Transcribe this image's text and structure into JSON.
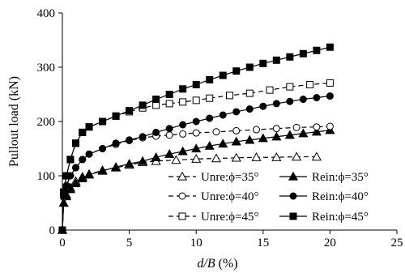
{
  "chart_data": {
    "type": "line",
    "xlabel_italic": "d/B",
    "xlabel_unit": " (%)",
    "ylabel": "Pullout load (kN)",
    "xlim": [
      0,
      25
    ],
    "ylim": [
      0,
      400
    ],
    "x_ticks": [
      "0",
      "5",
      "10",
      "15",
      "20",
      "25"
    ],
    "y_ticks": [
      "0",
      "100",
      "200",
      "300",
      "400"
    ],
    "grid": false,
    "legend_placement": "bottom-right",
    "series": [
      {
        "name": "Unre:ϕ=35°",
        "color": "#000000",
        "dashed": true,
        "marker": "triangle-open",
        "x": [
          0,
          0.1,
          0.3,
          0.6,
          1.0,
          1.5,
          2.0,
          3.0,
          4.0,
          5.0,
          6.0,
          7.0,
          8.5,
          10.0,
          11.5,
          13.0,
          14.5,
          16.0,
          17.5,
          19.0
        ],
        "y": [
          0,
          50,
          65,
          78,
          90,
          98,
          103,
          110,
          115,
          120,
          125,
          127,
          129,
          131,
          132,
          133,
          134,
          134,
          135,
          135
        ]
      },
      {
        "name": "Rein:ϕ=35°",
        "color": "#000000",
        "dashed": false,
        "marker": "triangle-filled",
        "x": [
          0,
          0.1,
          0.3,
          0.6,
          1.0,
          1.5,
          2.0,
          3.0,
          4.0,
          5.0,
          6.0,
          7.0,
          8.0,
          9.0,
          10.0,
          11.0,
          12.0,
          13.0,
          14.0,
          15.0,
          16.0,
          17.0,
          18.0,
          19.0,
          20.0
        ],
        "y": [
          0,
          50,
          62,
          75,
          86,
          95,
          102,
          109,
          116,
          122,
          127,
          134,
          140,
          145,
          150,
          155,
          159,
          163,
          166,
          169,
          172,
          175,
          178,
          181,
          184
        ]
      },
      {
        "name": "Unre:ϕ=40°",
        "color": "#000000",
        "dashed": true,
        "marker": "circle-open",
        "x": [
          0,
          0.1,
          0.3,
          0.6,
          1.0,
          1.5,
          2.0,
          3.0,
          4.0,
          5.0,
          6.0,
          7.0,
          8.0,
          9.0,
          10.0,
          11.5,
          13.0,
          14.5,
          16.0,
          17.5,
          19.0,
          20.0
        ],
        "y": [
          0,
          60,
          80,
          100,
          115,
          130,
          140,
          150,
          158,
          165,
          170,
          173,
          175,
          177,
          179,
          181,
          183,
          185,
          187,
          189,
          190,
          191
        ]
      },
      {
        "name": "Rein:ϕ=40°",
        "color": "#000000",
        "dashed": false,
        "marker": "circle-filled",
        "x": [
          0,
          0.1,
          0.3,
          0.6,
          1.0,
          1.5,
          2.0,
          3.0,
          4.0,
          5.0,
          6.0,
          7.0,
          8.0,
          9.0,
          10.0,
          11.0,
          12.0,
          13.0,
          14.0,
          15.0,
          16.0,
          17.0,
          18.0,
          19.0,
          20.0
        ],
        "y": [
          0,
          62,
          82,
          100,
          115,
          130,
          140,
          150,
          160,
          166,
          172,
          180,
          187,
          194,
          200,
          206,
          212,
          218,
          223,
          228,
          233,
          237,
          241,
          244,
          247
        ]
      },
      {
        "name": "Unre:ϕ=45°",
        "color": "#000000",
        "dashed": true,
        "marker": "square-open",
        "x": [
          0,
          0.1,
          0.3,
          0.6,
          1.0,
          1.5,
          2.0,
          3.0,
          4.0,
          5.0,
          6.0,
          7.0,
          8.0,
          9.0,
          10.0,
          11.0,
          12.5,
          14.0,
          15.5,
          17.0,
          18.5,
          20.0
        ],
        "y": [
          0,
          70,
          100,
          130,
          160,
          180,
          190,
          200,
          210,
          218,
          225,
          230,
          233,
          236,
          239,
          243,
          248,
          252,
          258,
          264,
          268,
          271
        ]
      },
      {
        "name": "Rein:ϕ=45°",
        "color": "#000000",
        "dashed": false,
        "marker": "square-filled",
        "x": [
          0,
          0.1,
          0.3,
          0.6,
          1.0,
          1.5,
          2.0,
          3.0,
          4.0,
          5.0,
          6.0,
          7.0,
          8.0,
          9.0,
          10.0,
          11.0,
          12.0,
          13.0,
          14.0,
          15.0,
          16.0,
          17.0,
          18.0,
          19.0,
          20.0
        ],
        "y": [
          0,
          70,
          100,
          130,
          160,
          180,
          190,
          200,
          210,
          220,
          230,
          241,
          250,
          260,
          268,
          277,
          285,
          293,
          300,
          307,
          313,
          319,
          325,
          331,
          337
        ]
      }
    ],
    "legend_rows": [
      [
        0,
        1
      ],
      [
        2,
        3
      ],
      [
        4,
        5
      ]
    ]
  }
}
